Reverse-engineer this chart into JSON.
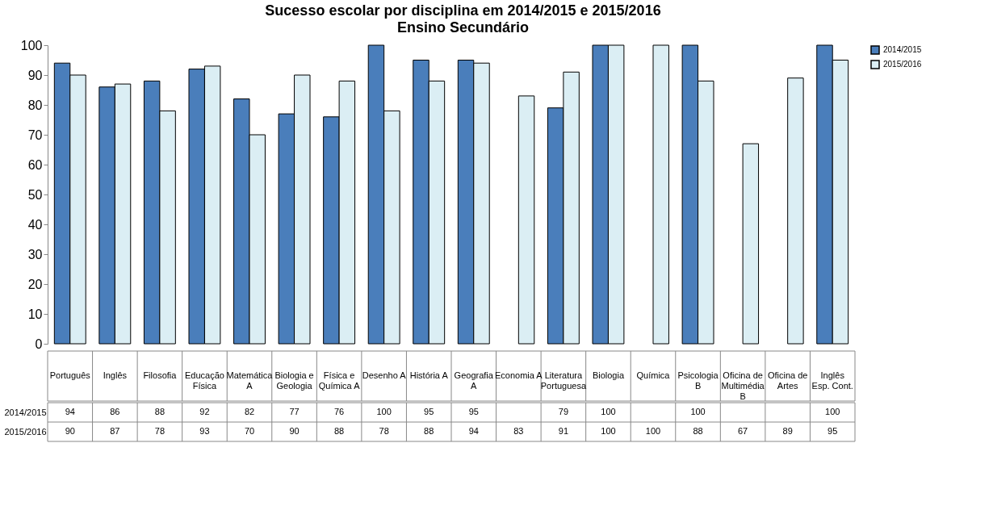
{
  "chart_data": {
    "type": "bar",
    "title": "Sucesso escolar por disciplina em 2014/2015 e 2015/2016",
    "subtitle": "Ensino Secundário",
    "categories": [
      "Português",
      "Inglês",
      "Filosofia",
      "Educação Física",
      "Matemática A",
      "Biologia e Geologia",
      "Física e Química A",
      "Desenho A",
      "História A",
      "Geografia A",
      "Economia A",
      "Literatura Portuguesa",
      "Biologia",
      "Química",
      "Psicologia B",
      "Oficina de Multimédia B",
      "Oficina de Artes",
      "Inglês Esp. Cont."
    ],
    "series": [
      {
        "name": "2014/2015",
        "color": "#4a7ebb",
        "values": [
          94,
          86,
          88,
          92,
          82,
          77,
          76,
          100,
          95,
          95,
          null,
          79,
          100,
          null,
          100,
          null,
          null,
          100
        ]
      },
      {
        "name": "2015/2016",
        "color": "#dbeef4",
        "values": [
          90,
          87,
          78,
          93,
          70,
          90,
          88,
          78,
          88,
          94,
          83,
          91,
          100,
          100,
          88,
          67,
          89,
          95
        ]
      }
    ],
    "ylim": [
      0,
      100
    ],
    "yticks": [
      0,
      10,
      20,
      30,
      40,
      50,
      60,
      70,
      80,
      90,
      100
    ],
    "grid": false,
    "legend": "right",
    "data_labels": true
  }
}
